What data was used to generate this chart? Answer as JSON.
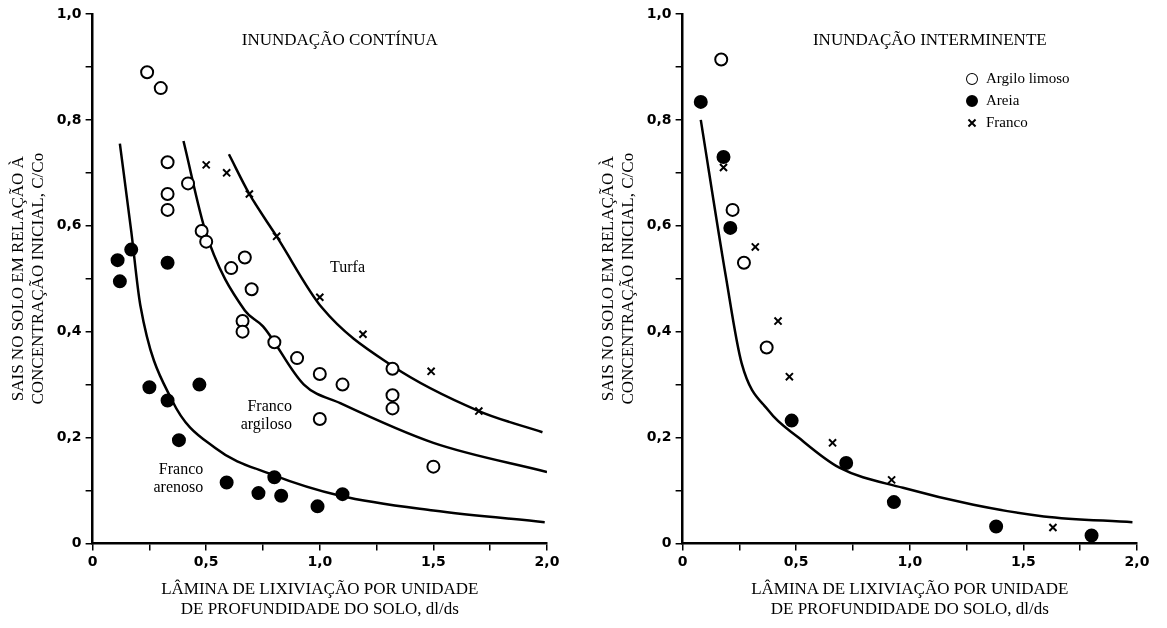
{
  "chart_data": [
    {
      "type": "scatter",
      "title": "INUNDAÇÃO CONTÍNUA",
      "xlabel": "LÂMINA DE LIXIVIAÇÃO POR UNIDADE\nDE PROFUNDIDADE DO SOLO, dl/ds",
      "ylabel": "SAIS NO SOLO EM RELAÇÃO À\nCONCENTRAÇÃO INICIAL, C/Co",
      "xlim": [
        0,
        2.0
      ],
      "ylim": [
        0,
        1.0
      ],
      "xticks": [
        0,
        {
          "value": 0.25,
          "label": null
        },
        {
          "value": 0.5,
          "label": "0,5"
        },
        {
          "value": 0.75,
          "label": null
        },
        {
          "value": 1.0,
          "label": "1,0"
        },
        {
          "value": 1.25,
          "label": null
        },
        {
          "value": 1.5,
          "label": "1,5"
        },
        {
          "value": 1.75,
          "label": null
        },
        {
          "value": 2.0,
          "label": "2,0"
        }
      ],
      "yticks": [
        0,
        {
          "value": 0.1,
          "label": null
        },
        {
          "value": 0.2,
          "label": "0,2"
        },
        {
          "value": 0.3,
          "label": null
        },
        {
          "value": 0.4,
          "label": "0,4"
        },
        {
          "value": 0.5,
          "label": null
        },
        {
          "value": 0.6,
          "label": "0,6"
        },
        {
          "value": 0.7,
          "label": null
        },
        {
          "value": 0.8,
          "label": "0,8"
        },
        {
          "value": 0.9,
          "label": null
        },
        {
          "value": 1.0,
          "label": "1,0"
        }
      ],
      "grid": false,
      "legend": false,
      "series": [
        {
          "marker": "circle",
          "color": "#ffffff",
          "x": [
            0.24,
            0.3,
            0.33,
            0.33,
            0.33,
            0.42,
            0.48,
            0.5,
            0.61,
            0.67,
            0.7,
            0.66,
            0.66,
            0.8,
            0.9,
            1.0,
            1.0,
            1.1,
            1.32,
            1.32,
            1.32,
            1.5
          ],
          "values": [
            0.89,
            0.86,
            0.72,
            0.66,
            0.63,
            0.68,
            0.59,
            0.57,
            0.52,
            0.54,
            0.48,
            0.42,
            0.4,
            0.38,
            0.35,
            0.32,
            0.235,
            0.3,
            0.33,
            0.28,
            0.255,
            0.145
          ]
        },
        {
          "marker": "circle",
          "color": "#000000",
          "x": [
            0.11,
            0.12,
            0.17,
            0.33,
            0.25,
            0.33,
            0.38,
            0.47,
            0.59,
            0.73,
            0.83,
            0.8,
            0.99,
            1.1
          ],
          "values": [
            0.535,
            0.495,
            0.555,
            0.53,
            0.295,
            0.27,
            0.195,
            0.3,
            0.115,
            0.095,
            0.09,
            0.125,
            0.07,
            0.093
          ]
        },
        {
          "marker": "cross",
          "color": "#000000",
          "x": [
            0.5,
            0.59,
            0.69,
            0.81,
            1.0,
            1.19,
            1.49,
            1.7
          ],
          "values": [
            0.715,
            0.7,
            0.66,
            0.58,
            0.465,
            0.395,
            0.325,
            0.25
          ]
        },
        {
          "type": "line",
          "name": "Turfa",
          "marker": "none",
          "color": "#000000",
          "x": [
            0.6,
            0.69,
            0.81,
            1.01,
            1.32,
            1.7,
            1.98
          ],
          "values": [
            0.735,
            0.66,
            0.58,
            0.445,
            0.335,
            0.25,
            0.21
          ]
        },
        {
          "type": "line",
          "name": "Franco argiloso",
          "marker": "none",
          "color": "#000000",
          "x": [
            0.4,
            0.5,
            0.67,
            0.75,
            0.93,
            1.09,
            1.5,
            2.0
          ],
          "values": [
            0.76,
            0.585,
            0.44,
            0.41,
            0.3,
            0.265,
            0.19,
            0.135
          ]
        },
        {
          "type": "line",
          "name": "Franco arenoso",
          "marker": "none",
          "color": "#000000",
          "x": [
            0.12,
            0.17,
            0.21,
            0.35,
            0.54,
            0.79,
            1.09,
            1.5,
            1.99
          ],
          "values": [
            0.755,
            0.59,
            0.45,
            0.27,
            0.18,
            0.13,
            0.09,
            0.062,
            0.04
          ]
        }
      ]
    },
    {
      "type": "scatter",
      "title": "INUNDAÇÃO INTERMINENTE",
      "xlabel": "LÂMINA DE LIXIVIAÇÃO POR UNIDADE\nDE PROFUNDIDADE DO SOLO, dl/ds",
      "ylabel": "SAIS NO SOLO EM RELAÇÃO À\nCONCENTRAÇÃO INICIAL, C/Co",
      "xlim": [
        0,
        2.0
      ],
      "ylim": [
        0,
        1.0
      ],
      "xticks": [
        0,
        {
          "value": 0.25,
          "label": null
        },
        {
          "value": 0.5,
          "label": "0,5"
        },
        {
          "value": 0.75,
          "label": null
        },
        {
          "value": 1.0,
          "label": "1,0"
        },
        {
          "value": 1.25,
          "label": null
        },
        {
          "value": 1.5,
          "label": "1,5"
        },
        {
          "value": 1.75,
          "label": null
        },
        {
          "value": 2.0,
          "label": "2,0"
        }
      ],
      "yticks": [
        0,
        {
          "value": 0.1,
          "label": null
        },
        {
          "value": 0.2,
          "label": "0,2"
        },
        {
          "value": 0.3,
          "label": null
        },
        {
          "value": 0.4,
          "label": "0,4"
        },
        {
          "value": 0.5,
          "label": null
        },
        {
          "value": 0.6,
          "label": "0,6"
        },
        {
          "value": 0.7,
          "label": null
        },
        {
          "value": 0.8,
          "label": "0,8"
        },
        {
          "value": 0.9,
          "label": null
        },
        {
          "value": 1.0,
          "label": "1,0"
        }
      ],
      "grid": false,
      "legend": "top right",
      "series": [
        {
          "name": "Argilo limoso",
          "marker": "circle",
          "color": "#ffffff",
          "x": [
            0.17,
            0.22,
            0.27,
            0.37
          ],
          "values": [
            0.914,
            0.63,
            0.53,
            0.37
          ]
        },
        {
          "name": "Areia",
          "marker": "circle",
          "color": "#000000",
          "x": [
            0.08,
            0.18,
            0.21,
            0.48,
            0.72,
            0.93,
            1.38,
            1.8
          ],
          "values": [
            0.834,
            0.73,
            0.596,
            0.232,
            0.152,
            0.078,
            0.032,
            0.015
          ]
        },
        {
          "name": "Franco",
          "marker": "cross",
          "color": "#000000",
          "x": [
            0.18,
            0.32,
            0.42,
            0.47,
            0.66,
            0.92,
            1.63
          ],
          "values": [
            0.71,
            0.56,
            0.42,
            0.315,
            0.19,
            0.12,
            0.03
          ]
        },
        {
          "type": "line",
          "marker": "none",
          "color": "#000000",
          "x": [
            0.08,
            0.19,
            0.26,
            0.38,
            0.51,
            0.69,
            0.97,
            1.28,
            1.59,
            1.98
          ],
          "values": [
            0.8,
            0.505,
            0.34,
            0.25,
            0.2,
            0.143,
            0.105,
            0.073,
            0.051,
            0.04
          ]
        }
      ]
    }
  ]
}
